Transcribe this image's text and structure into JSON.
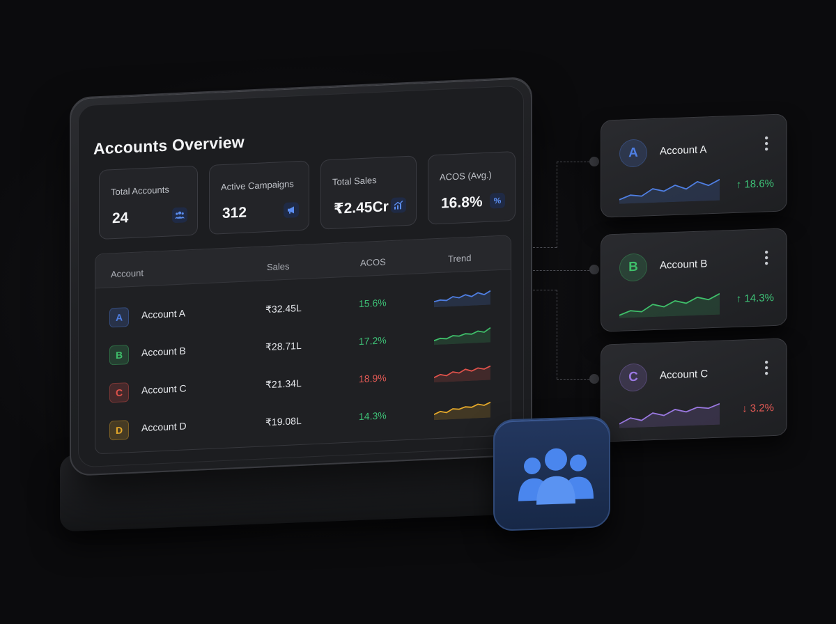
{
  "title": "Accounts Overview",
  "stats": [
    {
      "label": "Total Accounts",
      "value": "24",
      "icon": "users-icon"
    },
    {
      "label": "Active Campaigns",
      "value": "312",
      "icon": "megaphone-icon"
    },
    {
      "label": "Total Sales",
      "value": "₹2.45Cr",
      "icon": "chart-up-icon"
    },
    {
      "label": "ACOS (Avg.)",
      "value": "16.8%",
      "icon": "percent-icon",
      "icon_glyph": "%"
    }
  ],
  "table": {
    "headers": [
      "Account",
      "Sales",
      "ACOS",
      "Trend"
    ],
    "rows": [
      {
        "badge": "A",
        "name": "Account A",
        "sales": "₹32.45L",
        "acos": "15.6%",
        "color": "#4f7fe3",
        "acos_color": "#3ec277"
      },
      {
        "badge": "B",
        "name": "Account B",
        "sales": "₹28.71L",
        "acos": "17.2%",
        "color": "#3fbf6a",
        "acos_color": "#3ec277"
      },
      {
        "badge": "C",
        "name": "Account C",
        "sales": "₹21.34L",
        "acos": "18.9%",
        "color": "#e0524b",
        "acos_color": "#e35a55"
      },
      {
        "badge": "D",
        "name": "Account D",
        "sales": "₹19.08L",
        "acos": "14.3%",
        "color": "#e6a92a",
        "acos_color": "#3ec277"
      }
    ]
  },
  "cards": [
    {
      "badge": "A",
      "name": "Account A",
      "change": "↑ 18.6%",
      "color": "#4f7fe3",
      "change_color": "#3ec277"
    },
    {
      "badge": "B",
      "name": "Account B",
      "change": "↑ 14.3%",
      "color": "#3fbf6a",
      "change_color": "#3ec277"
    },
    {
      "badge": "C",
      "name": "Account C",
      "change": "↓ 3.2%",
      "color": "#9a78e0",
      "change_color": "#e35a55"
    }
  ],
  "app_icon": "team-icon"
}
